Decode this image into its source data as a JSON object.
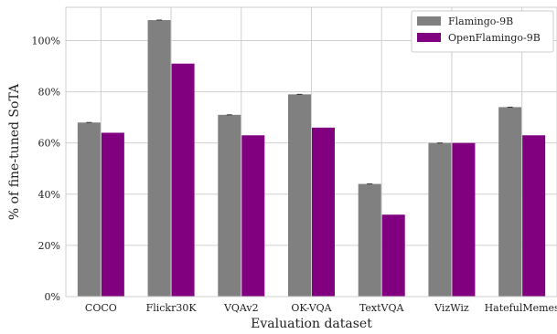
{
  "chart_data": {
    "type": "bar",
    "title": "",
    "xlabel": "Evaluation dataset",
    "ylabel": "% of fine-tuned SoTA",
    "categories": [
      "COCO",
      "Flickr30K",
      "VQAv2",
      "OK-VQA",
      "TextVQA",
      "VizWiz",
      "HatefulMemes"
    ],
    "series": [
      {
        "name": "Flamingo-9B",
        "color": "#808080",
        "values": [
          68,
          108,
          71,
          79,
          44,
          60,
          74
        ]
      },
      {
        "name": "OpenFlamingo-9B",
        "color": "#800080",
        "values": [
          64,
          91,
          63,
          66,
          32,
          60,
          63
        ]
      }
    ],
    "ylim": [
      0,
      113
    ],
    "yticks": [
      0,
      20,
      40,
      60,
      80,
      100
    ],
    "ytick_labels": [
      "0%",
      "20%",
      "40%",
      "60%",
      "80%",
      "100%"
    ],
    "grid": true,
    "legend_position": "top-right"
  }
}
